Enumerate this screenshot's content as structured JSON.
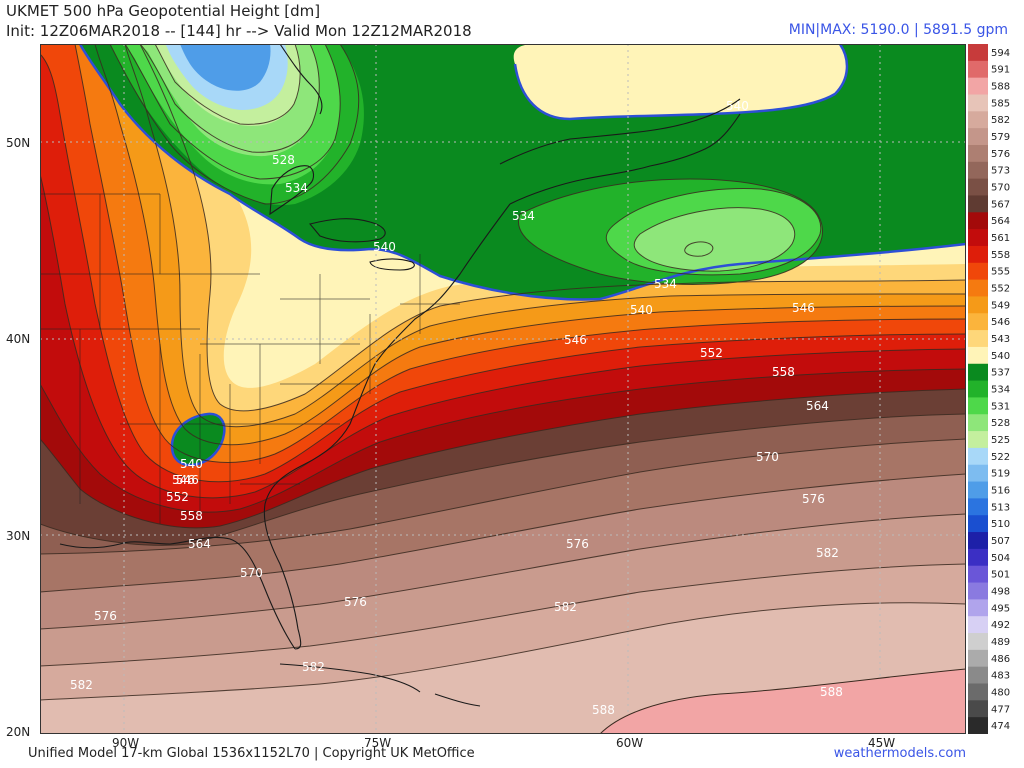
{
  "header": {
    "title": "UKMET 500 hPa Geopotential Height [dm]",
    "init": "Init: 12Z06MAR2018 -- [144] hr --> Valid Mon 12Z12MAR2018",
    "minmax": "MIN|MAX: 5190.0 | 5891.5 gpm"
  },
  "footer": {
    "credit": "Unified Model 17-km Global 1536x1152L70 | Copyright UK MetOffice",
    "site": "weathermodels.com"
  },
  "axes": {
    "lat_labels": [
      "50N",
      "40N",
      "30N",
      "20N"
    ],
    "lon_labels": [
      "90W",
      "75W",
      "60W",
      "45W"
    ]
  },
  "colorbar": {
    "levels": [
      "594",
      "591",
      "588",
      "585",
      "582",
      "579",
      "576",
      "573",
      "570",
      "567",
      "564",
      "561",
      "558",
      "555",
      "552",
      "549",
      "546",
      "543",
      "540",
      "537",
      "534",
      "531",
      "528",
      "525",
      "522",
      "519",
      "516",
      "513",
      "510",
      "507",
      "504",
      "501",
      "498",
      "495",
      "492",
      "489",
      "486",
      "483",
      "480",
      "477",
      "474"
    ],
    "colors": [
      "#c73b3b",
      "#e06a6a",
      "#f2a5a5",
      "#e7c4b8",
      "#d6aa9d",
      "#c4968a",
      "#ad7f72",
      "#93675b",
      "#7a5045",
      "#5f3b32",
      "#a30a0a",
      "#c20c0c",
      "#de1e0a",
      "#f0470a",
      "#f57a10",
      "#f59a18",
      "#fbb43c",
      "#fed77a",
      "#fff4b8",
      "#0a8a1f",
      "#22b22a",
      "#4ed84a",
      "#8ee67a",
      "#c4ef9e",
      "#a8d8f8",
      "#7dbcf0",
      "#4f9de8",
      "#2b74e0",
      "#1a4fd0",
      "#1d20a8",
      "#3b2fc4",
      "#6a56d8",
      "#8a7ae0",
      "#b0a4ec",
      "#d7d0f4",
      "#cfcfcf",
      "#ababab",
      "#8a8a8a",
      "#6b6b6b",
      "#4a4a4a",
      "#2a2a2a"
    ]
  },
  "contour_labels": [
    "528",
    "534",
    "540",
    "534",
    "534",
    "540",
    "540",
    "546",
    "546",
    "552",
    "558",
    "564",
    "546",
    "540",
    "546",
    "552",
    "558",
    "564",
    "570",
    "576",
    "582",
    "570",
    "576",
    "576",
    "582",
    "576",
    "582",
    "582",
    "588",
    "588"
  ],
  "colors": {
    "coast": "#1a1a1a",
    "contour": "#3a2a20",
    "highlight_540": "#2d4fd6",
    "accent": "#3a55e6"
  }
}
